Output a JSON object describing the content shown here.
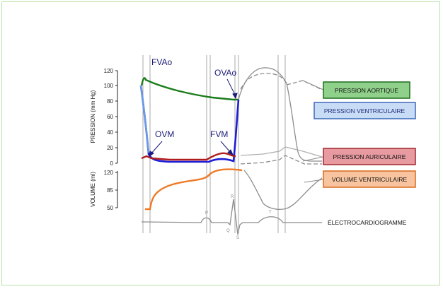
{
  "annotations": {
    "fvao": "FVAo",
    "ovao": "OVAo",
    "ovm": "OVM",
    "fvm": "FVM"
  },
  "pressure_axis": {
    "title": "PRESSION (mm Hg)",
    "ticks": [
      "120",
      "100",
      "80",
      "60",
      "40",
      "20",
      "0"
    ]
  },
  "volume_axis": {
    "title": "VOLUME (ml)",
    "ticks": [
      "120",
      "85",
      "50"
    ]
  },
  "ecg_letters": {
    "p": "P",
    "r": "R",
    "q": "Q",
    "s": "S",
    "t": "T"
  },
  "legend": [
    {
      "label": "PRESSION AORTIQUE",
      "fill": "#8fd18a",
      "border": "#1e6e1e",
      "text": "#111111"
    },
    {
      "label": "PRESSION VENTRICULAIRE",
      "fill": "#c9dcf6",
      "border": "#3a66b8",
      "text": "#1b2a78"
    },
    {
      "label": "PRESSION AURICULAIRE",
      "fill": "#e79aa0",
      "border": "#a0282e",
      "text": "#111111"
    },
    {
      "label": "VOLUME VENTRICULAIRE",
      "fill": "#f7c49f",
      "border": "#d86a1c",
      "text": "#111111"
    }
  ],
  "ecg_label": "ÉLECTROCARDIOGRAMME",
  "colors": {
    "aortic": "#1c7d1c",
    "ventricular": "#1d1dd6",
    "ventricular_light": "#5b8fe0",
    "atrial": "#b01c1c",
    "volume": "#ee7a26",
    "gray": "#8c8c8c"
  }
}
